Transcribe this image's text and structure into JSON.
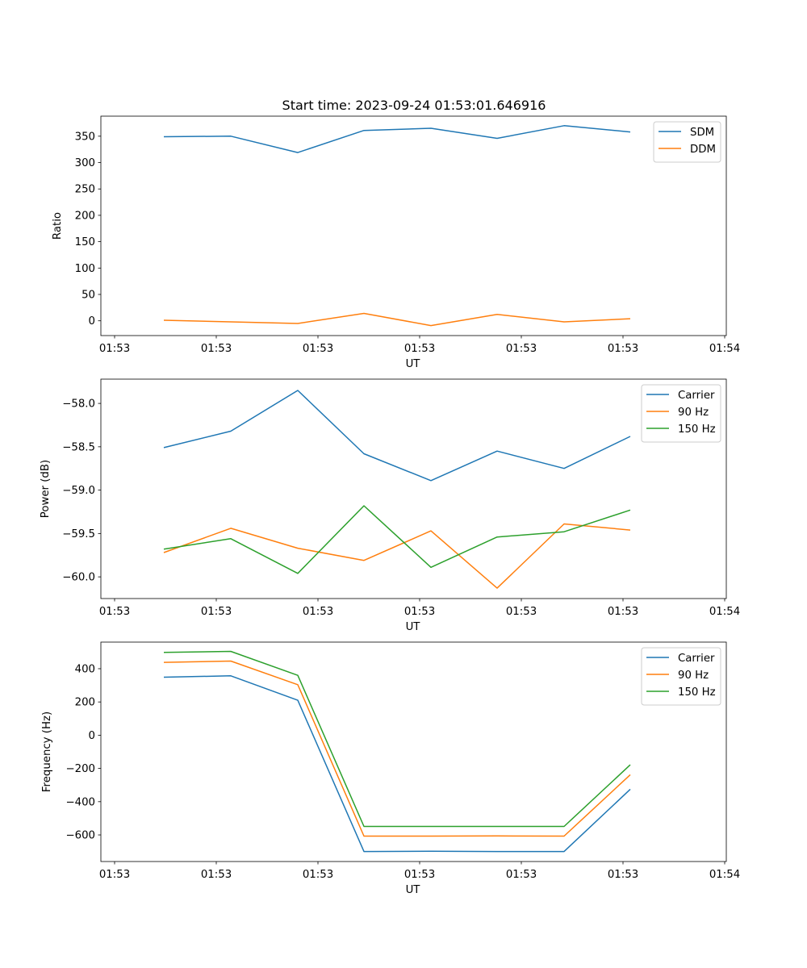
{
  "figure_title": "Start time: 2023-09-24 01:53:01.646916",
  "chart_data": [
    {
      "type": "line",
      "ylabel": "Ratio",
      "xlabel": "UT",
      "x_tick_labels": [
        "01:53",
        "01:53",
        "01:53",
        "01:53",
        "01:53",
        "01:53",
        "01:54"
      ],
      "y_ticks": [
        0,
        50,
        100,
        150,
        200,
        250,
        300,
        350
      ],
      "y_tick_labels": [
        "0",
        "50",
        "100",
        "150",
        "200",
        "250",
        "300",
        "350"
      ],
      "ylim": [
        -28,
        388
      ],
      "x": [
        1,
        2,
        3,
        4,
        5,
        6,
        7,
        8
      ],
      "xlim": [
        -0.2,
        9.1
      ],
      "legend_position": "top-right",
      "series": [
        {
          "name": "SDM",
          "color": "#1f77b4",
          "values": [
            349,
            350,
            319,
            361,
            365,
            346,
            370,
            358
          ]
        },
        {
          "name": "DDM",
          "color": "#ff7f0e",
          "values": [
            1,
            -2,
            -5,
            14,
            -9,
            12,
            -2,
            4
          ]
        }
      ]
    },
    {
      "type": "line",
      "ylabel": "Power (dB)",
      "xlabel": "UT",
      "x_tick_labels": [
        "01:53",
        "01:53",
        "01:53",
        "01:53",
        "01:53",
        "01:53",
        "01:54"
      ],
      "y_ticks": [
        -60.0,
        -59.5,
        -59.0,
        -58.5,
        -58.0
      ],
      "y_tick_labels": [
        "−60.0",
        "−59.5",
        "−59.0",
        "−58.5",
        "−58.0"
      ],
      "ylim": [
        -60.25,
        -57.72
      ],
      "x": [
        1,
        2,
        3,
        4,
        5,
        6,
        7,
        8
      ],
      "xlim": [
        -0.2,
        9.1
      ],
      "legend_position": "top-right",
      "series": [
        {
          "name": "Carrier",
          "color": "#1f77b4",
          "values": [
            -58.51,
            -58.32,
            -57.85,
            -58.58,
            -58.89,
            -58.55,
            -58.75,
            -58.38
          ]
        },
        {
          "name": "90 Hz",
          "color": "#ff7f0e",
          "values": [
            -59.72,
            -59.44,
            -59.67,
            -59.81,
            -59.47,
            -60.13,
            -59.39,
            -59.46
          ]
        },
        {
          "name": "150 Hz",
          "color": "#2ca02c",
          "values": [
            -59.68,
            -59.56,
            -59.96,
            -59.18,
            -59.89,
            -59.54,
            -59.48,
            -59.23
          ]
        }
      ]
    },
    {
      "type": "line",
      "ylabel": "Frequency (Hz)",
      "xlabel": "UT",
      "x_tick_labels": [
        "01:53",
        "01:53",
        "01:53",
        "01:53",
        "01:53",
        "01:53",
        "01:54"
      ],
      "y_ticks": [
        -600,
        -400,
        -200,
        0,
        200,
        400
      ],
      "y_tick_labels": [
        "−600",
        "−400",
        "−200",
        "0",
        "200",
        "400"
      ],
      "ylim": [
        -760,
        560
      ],
      "x": [
        1,
        2,
        3,
        4,
        5,
        6,
        7,
        8
      ],
      "xlim": [
        -0.2,
        9.1
      ],
      "legend_position": "top-right",
      "series": [
        {
          "name": "Carrier",
          "color": "#1f77b4",
          "values": [
            349,
            357,
            210,
            -700,
            -698,
            -700,
            -700,
            -325
          ]
        },
        {
          "name": "90 Hz",
          "color": "#ff7f0e",
          "values": [
            438,
            446,
            304,
            -607,
            -607,
            -606,
            -607,
            -238
          ]
        },
        {
          "name": "150 Hz",
          "color": "#2ca02c",
          "values": [
            498,
            504,
            360,
            -549,
            -549,
            -549,
            -549,
            -178
          ]
        }
      ]
    }
  ]
}
